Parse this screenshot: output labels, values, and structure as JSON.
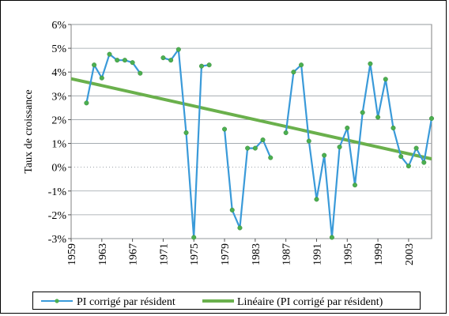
{
  "chart_data": {
    "type": "line",
    "title": "",
    "ylabel": "Taux de croissance",
    "xlabel": "",
    "y_format": "percent",
    "ylim": [
      -0.03,
      0.06
    ],
    "y_ticks": [
      -0.03,
      -0.02,
      -0.01,
      0,
      0.01,
      0.02,
      0.03,
      0.04,
      0.05,
      0.06
    ],
    "y_tick_labels": [
      "-3%",
      "-2%",
      "-1%",
      "0%",
      "1%",
      "2%",
      "3%",
      "4%",
      "5%",
      "6%"
    ],
    "xlim": [
      1959,
      2006
    ],
    "x_ticks": [
      1959,
      1963,
      1967,
      1971,
      1975,
      1979,
      1983,
      1987,
      1991,
      1995,
      1999,
      2003
    ],
    "x_tick_labels": [
      "1959",
      "1963",
      "1967",
      "1971",
      "1975",
      "1979",
      "1983",
      "1987",
      "1991",
      "1995",
      "1999",
      "2003"
    ],
    "grid": true,
    "legend_position": "bottom",
    "series": [
      {
        "name": "PI corrigé par résident",
        "color": "#3a9ad9",
        "marker": "circle",
        "marker_color": "#4caf50",
        "points": [
          [
            1961,
            0.027
          ],
          [
            1962,
            0.043
          ],
          [
            1963,
            0.0375
          ],
          [
            1964,
            0.0475
          ],
          [
            1965,
            0.045
          ],
          [
            1966,
            0.045
          ],
          [
            1967,
            0.044
          ],
          [
            1968,
            0.0395
          ],
          null,
          [
            1971,
            0.046
          ],
          [
            1972,
            0.045
          ],
          [
            1973,
            0.0495
          ],
          [
            1974,
            0.0145
          ],
          [
            1975,
            -0.0295
          ],
          [
            1976,
            0.0425
          ],
          [
            1977,
            0.043
          ],
          null,
          [
            1979,
            0.016
          ],
          [
            1980,
            -0.018
          ],
          [
            1981,
            -0.0255
          ],
          [
            1982,
            0.008
          ],
          [
            1983,
            0.008
          ],
          [
            1984,
            0.0115
          ],
          [
            1985,
            0.004
          ],
          null,
          [
            1987,
            0.0145
          ],
          [
            1988,
            0.04
          ],
          [
            1989,
            0.043
          ],
          [
            1990,
            0.011
          ],
          [
            1991,
            -0.0135
          ],
          [
            1992,
            0.005
          ],
          [
            1993,
            -0.0295
          ],
          [
            1994,
            0.0085
          ],
          [
            1995,
            0.0165
          ],
          [
            1996,
            -0.0075
          ],
          [
            1997,
            0.023
          ],
          [
            1998,
            0.0435
          ],
          [
            1999,
            0.021
          ],
          [
            2000,
            0.037
          ],
          [
            2001,
            0.0165
          ],
          [
            2002,
            0.0045
          ],
          [
            2003,
            0.0005
          ],
          [
            2004,
            0.008
          ],
          [
            2005,
            0.002
          ],
          [
            2006,
            0.0205
          ]
        ]
      },
      {
        "name": "Linéaire (PI corrigé par résident)",
        "color": "#6ab04c",
        "type": "trendline",
        "points": [
          [
            1959,
            0.0372
          ],
          [
            2006,
            0.0035
          ]
        ]
      }
    ]
  }
}
